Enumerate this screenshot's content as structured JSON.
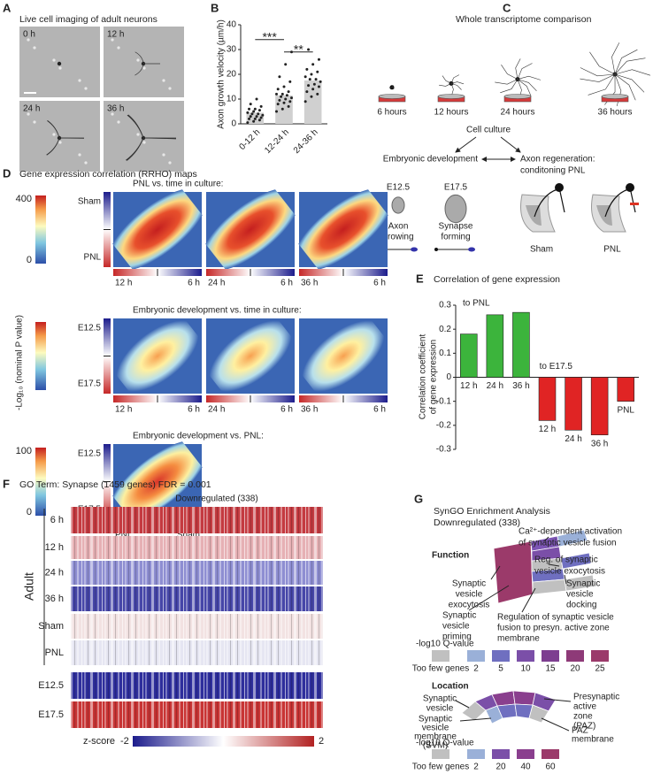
{
  "panel_labels": [
    "A",
    "B",
    "C",
    "D",
    "E",
    "F",
    "G"
  ],
  "panel_a": {
    "title": "Live cell imaging of adult neurons",
    "times": [
      "0 h",
      "12 h",
      "24 h",
      "36 h"
    ]
  },
  "chart_data": [
    {
      "type": "bar",
      "ylabel": "Axon growth velocity (µm/h)",
      "categories": [
        "0-12 h",
        "12-24 h",
        "24-36 h"
      ],
      "values": [
        4.5,
        11.5,
        17.5
      ],
      "color": "#d0d0d0",
      "points": [
        [
          0.5,
          1,
          1.5,
          2,
          2,
          2.5,
          3,
          3,
          3.5,
          4,
          4,
          4.5,
          5,
          5.5,
          6,
          6,
          7,
          8,
          10
        ],
        [
          5,
          6,
          7,
          8,
          8.5,
          9,
          9.5,
          10,
          10.5,
          11,
          11.5,
          12,
          12,
          13,
          14,
          15,
          17,
          19,
          24,
          29
        ],
        [
          9,
          11,
          12,
          13,
          14,
          15,
          15.5,
          16,
          17,
          18,
          18,
          19,
          20,
          21,
          22,
          24,
          26,
          30
        ]
      ],
      "annotations": [
        "***",
        "**"
      ],
      "ylim": [
        0,
        40
      ],
      "yticks": [
        0,
        10,
        20,
        30,
        40
      ]
    },
    {
      "type": "bar",
      "title": "Correlation of gene expression",
      "ylabel": [
        "Correlation coefficient",
        "of gene expression"
      ],
      "group_labels": [
        "to PNL",
        "to E17.5"
      ],
      "categories": [
        "12 h",
        "24 h",
        "36 h",
        "12 h",
        "24 h",
        "36 h",
        "PNL"
      ],
      "values": [
        0.18,
        0.26,
        0.27,
        -0.18,
        -0.22,
        -0.24,
        -0.1
      ],
      "colors": [
        "#3cb43c",
        "#3cb43c",
        "#3cb43c",
        "#e02424",
        "#e02424",
        "#e02424",
        "#e02424"
      ],
      "ylim": [
        -0.3,
        0.3
      ],
      "yticks": [
        -0.3,
        -0.2,
        -0.1,
        0,
        0.1,
        0.2,
        0.3
      ]
    }
  ],
  "panel_c": {
    "title": "Whole transcriptome comparison",
    "times": [
      "6 hours",
      "12 hours",
      "24 hours",
      "36 hours"
    ],
    "center": "Cell culture",
    "left": "Embryonic development",
    "right": [
      "Axon regeneration:",
      "conditoning PNL"
    ],
    "stages": [
      "E12.5",
      "E17.5"
    ],
    "stage_labels": [
      [
        "Axon",
        "growing"
      ],
      [
        "Synapse",
        "forming"
      ]
    ],
    "conditions": [
      "Sham",
      "PNL"
    ]
  },
  "panel_d": {
    "title": "Gene expression correlation  (RRHO) maps",
    "ylabel": "-Log₁₀ (nominal P value)",
    "rows": [
      {
        "title": "PNL vs. time in culture:",
        "top": "Sham",
        "bottom": "PNL",
        "colorbar_ticks": [
          400,
          0
        ],
        "x_labels": [
          [
            "12 h",
            "6 h"
          ],
          [
            "24 h",
            "6 h"
          ],
          [
            "36 h",
            "6 h"
          ]
        ]
      },
      {
        "title": "Embryonic development vs. time in culture:",
        "top": "E12.5",
        "bottom": "E17.5",
        "x_labels": [
          [
            "12 h",
            "6 h"
          ],
          [
            "24 h",
            "6 h"
          ],
          [
            "36 h",
            "6 h"
          ]
        ]
      },
      {
        "title": "Embryonic development vs. PNL:",
        "top": "E12.5",
        "bottom": "E17.5",
        "colorbar_ticks": [
          100,
          0
        ],
        "x_labels": [
          [
            "PNL",
            "Sham"
          ]
        ]
      }
    ]
  },
  "panel_f": {
    "title": "GO Term: Synapse (1459 genes) FDR = 0.001",
    "subtitle": "Downregulated (338)",
    "group": "Adult",
    "rows": [
      "6 h",
      "12 h",
      "24 h",
      "36 h",
      "Sham",
      "PNL",
      "E12.5",
      "E17.5"
    ],
    "legend_label": "z-score",
    "legend_ticks": [
      -2,
      2
    ]
  },
  "panel_g": {
    "title": "SynGO Enrichment Analysis",
    "subtitle": "Downregulated (338)",
    "function": {
      "heading": "Function",
      "labels": [
        [
          "Ca²⁺-dependent activation",
          "of synaptic vesicle fusion"
        ],
        [
          "Reg. of synaptic",
          "vesicle exocytosis"
        ],
        [
          "Synaptic",
          "vesicle",
          "docking"
        ],
        [
          "Synaptic",
          "vesicle",
          "exocytosis"
        ],
        [
          "Synaptic",
          "vesicle",
          "priming"
        ],
        [
          "Regulation of synaptic vesicle",
          "fusion to presyn. active zone",
          "membrane"
        ]
      ],
      "legend_title": "-log10 Q-value",
      "legend": [
        "Too few genes",
        2,
        5,
        10,
        15,
        20,
        25
      ]
    },
    "location": {
      "heading": "Location",
      "labels": [
        [
          "Synaptic",
          "vesicle"
        ],
        [
          "Synaptic",
          "vesicle",
          "membrane",
          "(SVM)"
        ],
        [
          "Presynaptic",
          "active",
          "zone",
          "(PAZ)"
        ],
        [
          "PAZ",
          "membrane"
        ]
      ],
      "legend_title": "-log10 Q-value",
      "legend": [
        "Too few genes",
        2,
        20,
        40,
        60
      ]
    }
  }
}
